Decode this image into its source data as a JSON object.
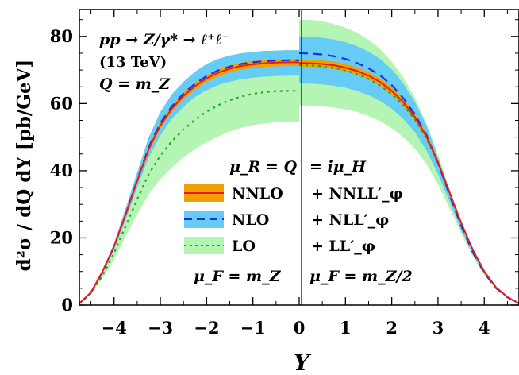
{
  "chart_data": {
    "type": "line",
    "title": "",
    "xlabel": "Y",
    "ylabel": "d²σ / dQ dY  [pb/GeV]",
    "xlim": [
      -4.75,
      4.75
    ],
    "ylim": [
      0,
      88
    ],
    "xticks": [
      -4,
      -3,
      -2,
      -1,
      0,
      1,
      2,
      3,
      4
    ],
    "yticks": [
      0,
      20,
      40,
      60,
      80
    ],
    "legend_position": "center",
    "annotations": {
      "process": "pp → Z/γ* → ℓ⁺ℓ⁻",
      "energy": "(13 TeV)",
      "scale_q": "Q = m_Z",
      "mu_r_left": "μ_R = Q",
      "mu_r_right": "= iμ_H",
      "mu_f_left": "μ_F = m_Z",
      "mu_f_right": "μ_F = m_Z/2"
    },
    "colors": {
      "nnlo_band": "#f0a000",
      "nnlo_line": "#e81c1c",
      "nlo_band": "#66ccf5",
      "nlo_line": "#1a33d9",
      "lo_band": "#b4f5b4",
      "lo_line": "#22a822"
    },
    "series": [
      {
        "name": "NNLO",
        "name_right": "+ NNLL′_φ",
        "x_left": [
          -4.75,
          -4.5,
          -4.25,
          -4,
          -3.75,
          -3.5,
          -3.25,
          -3,
          -2.75,
          -2.5,
          -2.25,
          -2,
          -1.75,
          -1.5,
          -1.25,
          -1,
          -0.75,
          -0.5,
          -0.25,
          0
        ],
        "central_left": [
          0.5,
          3.8,
          10,
          17.5,
          27,
          37,
          46.5,
          53.5,
          58.5,
          62.3,
          65.2,
          67.5,
          69.2,
          70.4,
          71.2,
          71.7,
          72.0,
          72.2,
          72.3,
          72.3
        ],
        "lower_left": [
          0.5,
          3.7,
          9.7,
          17.1,
          26.4,
          36.3,
          45.6,
          52.6,
          57.6,
          61.3,
          64.2,
          66.4,
          68.1,
          69.3,
          70.1,
          70.6,
          70.9,
          71.1,
          71.2,
          71.2
        ],
        "upper_left": [
          0.5,
          3.9,
          10.3,
          17.9,
          27.6,
          37.7,
          47.4,
          54.4,
          59.4,
          63.3,
          66.2,
          68.5,
          70.2,
          71.4,
          72.2,
          72.7,
          73.0,
          73.2,
          73.3,
          73.3
        ],
        "x_right": [
          0,
          0.25,
          0.5,
          0.75,
          1,
          1.25,
          1.5,
          1.75,
          2,
          2.25,
          2.5,
          2.75,
          3,
          3.25,
          3.5,
          3.75,
          4,
          4.25,
          4.5,
          4.75
        ],
        "central_right": [
          72.1,
          72.0,
          71.8,
          71.4,
          70.7,
          69.7,
          68.3,
          66.4,
          63.8,
          60.4,
          56.0,
          50.2,
          42.5,
          33.5,
          24.5,
          16.5,
          10,
          5.3,
          2.4,
          0.5
        ],
        "lower_right": [
          71.0,
          70.9,
          70.7,
          70.3,
          69.6,
          68.6,
          67.2,
          65.3,
          62.7,
          59.3,
          55.0,
          49.3,
          41.7,
          32.9,
          24.0,
          16.2,
          9.8,
          5.2,
          2.3,
          0.5
        ],
        "upper_right": [
          73.2,
          73.1,
          72.9,
          72.5,
          71.8,
          70.8,
          69.4,
          67.5,
          64.9,
          61.5,
          57.0,
          51.1,
          43.3,
          34.1,
          25.0,
          16.8,
          10.2,
          5.4,
          2.5,
          0.5
        ]
      },
      {
        "name": "NLO",
        "name_right": "+ NLL′_φ",
        "x_left": [
          -4.75,
          -4.5,
          -4.25,
          -4,
          -3.75,
          -3.5,
          -3.25,
          -3,
          -2.75,
          -2.5,
          -2.25,
          -2,
          -1.75,
          -1.5,
          -1.25,
          -1,
          -0.75,
          -0.5,
          -0.25,
          0
        ],
        "central_left": [
          0.5,
          3.7,
          9.9,
          17.4,
          27,
          37.2,
          47,
          54.2,
          59.2,
          63.0,
          65.9,
          68.2,
          69.9,
          71.0,
          71.8,
          72.3,
          72.6,
          72.8,
          72.9,
          72.9
        ],
        "lower_left": [
          0.5,
          3.6,
          9.4,
          16.5,
          25.5,
          35.0,
          44.0,
          50.5,
          55.5,
          59.0,
          62.0,
          64.0,
          65.5,
          66.5,
          67.2,
          67.7,
          68.0,
          68.2,
          68.3,
          68.3
        ],
        "upper_left": [
          0.5,
          3.8,
          10.4,
          18.4,
          28.8,
          39.5,
          50.0,
          57.5,
          62.8,
          66.5,
          69.5,
          71.8,
          73.3,
          74.3,
          75.0,
          75.4,
          75.7,
          75.8,
          75.9,
          75.9
        ],
        "x_right": [
          0,
          0.25,
          0.5,
          0.75,
          1,
          1.25,
          1.5,
          1.75,
          2,
          2.25,
          2.5,
          2.75,
          3,
          3.25,
          3.5,
          3.75,
          4,
          4.25,
          4.5,
          4.75
        ],
        "central_right": [
          75.0,
          74.9,
          74.6,
          74.1,
          73.3,
          72.1,
          70.5,
          68.4,
          65.5,
          61.6,
          56.8,
          50.6,
          42.3,
          32.8,
          23.6,
          15.8,
          9.6,
          5.1,
          2.3,
          0.5
        ],
        "lower_right": [
          66.0,
          65.9,
          65.7,
          65.3,
          64.7,
          63.8,
          62.5,
          60.8,
          58.5,
          55.4,
          51.5,
          46.0,
          39.0,
          30.8,
          22.4,
          15.1,
          9.2,
          4.9,
          2.2,
          0.5
        ],
        "upper_right": [
          80.0,
          79.9,
          79.6,
          79.1,
          78.3,
          77.1,
          75.5,
          73.3,
          70.2,
          66.0,
          60.5,
          53.5,
          44.0,
          34.0,
          24.4,
          16.3,
          9.9,
          5.3,
          2.4,
          0.5
        ]
      },
      {
        "name": "LO",
        "name_right": "+ LL′_φ",
        "x_left": [
          -4.75,
          -4.5,
          -4.25,
          -4,
          -3.75,
          -3.5,
          -3.25,
          -3,
          -2.75,
          -2.5,
          -2.25,
          -2,
          -1.75,
          -1.5,
          -1.25,
          -1,
          -0.75,
          -0.5,
          -0.25,
          0
        ],
        "central_left": [
          0.5,
          3.4,
          8.8,
          15.5,
          23.5,
          31.5,
          39.0,
          44.5,
          48.8,
          52.3,
          55.2,
          57.6,
          59.5,
          61.0,
          62.1,
          62.9,
          63.4,
          63.7,
          63.8,
          63.8
        ],
        "lower_left": [
          0.5,
          3.3,
          8.0,
          13.5,
          20.5,
          27.0,
          33.0,
          37.5,
          41.0,
          44.0,
          46.5,
          48.5,
          50.2,
          51.7,
          52.8,
          53.6,
          54.1,
          54.4,
          54.5,
          54.5
        ],
        "upper_left": [
          0.5,
          3.7,
          10.2,
          18.0,
          28.0,
          38.5,
          48.0,
          55.0,
          60.5,
          64.5,
          67.5,
          69.8,
          71.3,
          72.4,
          73.1,
          73.6,
          73.9,
          74.0,
          74.0,
          74.0
        ],
        "x_right": [
          0,
          0.25,
          0.5,
          0.75,
          1,
          1.25,
          1.5,
          1.75,
          2,
          2.25,
          2.5,
          2.75,
          3,
          3.25,
          3.5,
          3.75,
          4,
          4.25,
          4.5,
          4.75
        ],
        "central_right": [
          71.5,
          71.4,
          71.1,
          70.6,
          69.9,
          68.8,
          67.3,
          65.4,
          62.8,
          59.5,
          55.3,
          49.7,
          42.2,
          33.3,
          24.3,
          16.4,
          9.9,
          5.3,
          2.4,
          0.5
        ],
        "lower_right": [
          59.5,
          59.4,
          59.2,
          58.8,
          58.3,
          57.5,
          56.3,
          54.8,
          52.7,
          50.0,
          46.6,
          42.0,
          36.0,
          28.8,
          21.3,
          14.5,
          8.9,
          4.8,
          2.2,
          0.5
        ],
        "upper_right": [
          85.0,
          84.9,
          84.5,
          83.7,
          82.6,
          81.1,
          79.0,
          76.2,
          72.5,
          67.8,
          61.8,
          54.2,
          44.8,
          34.5,
          24.8,
          16.6,
          10.1,
          5.4,
          2.5,
          0.5
        ]
      }
    ]
  }
}
